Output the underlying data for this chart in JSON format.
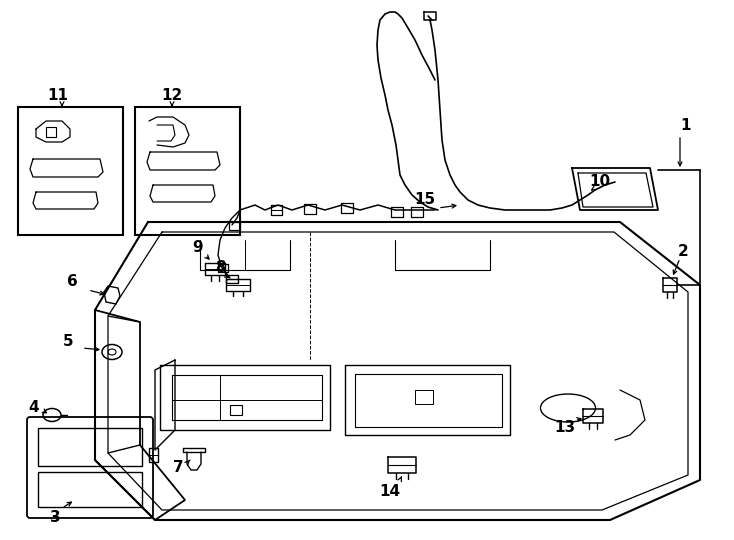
{
  "bg_color": "#ffffff",
  "line_color": "#000000",
  "figure_width": 7.34,
  "figure_height": 5.4,
  "dpi": 100
}
